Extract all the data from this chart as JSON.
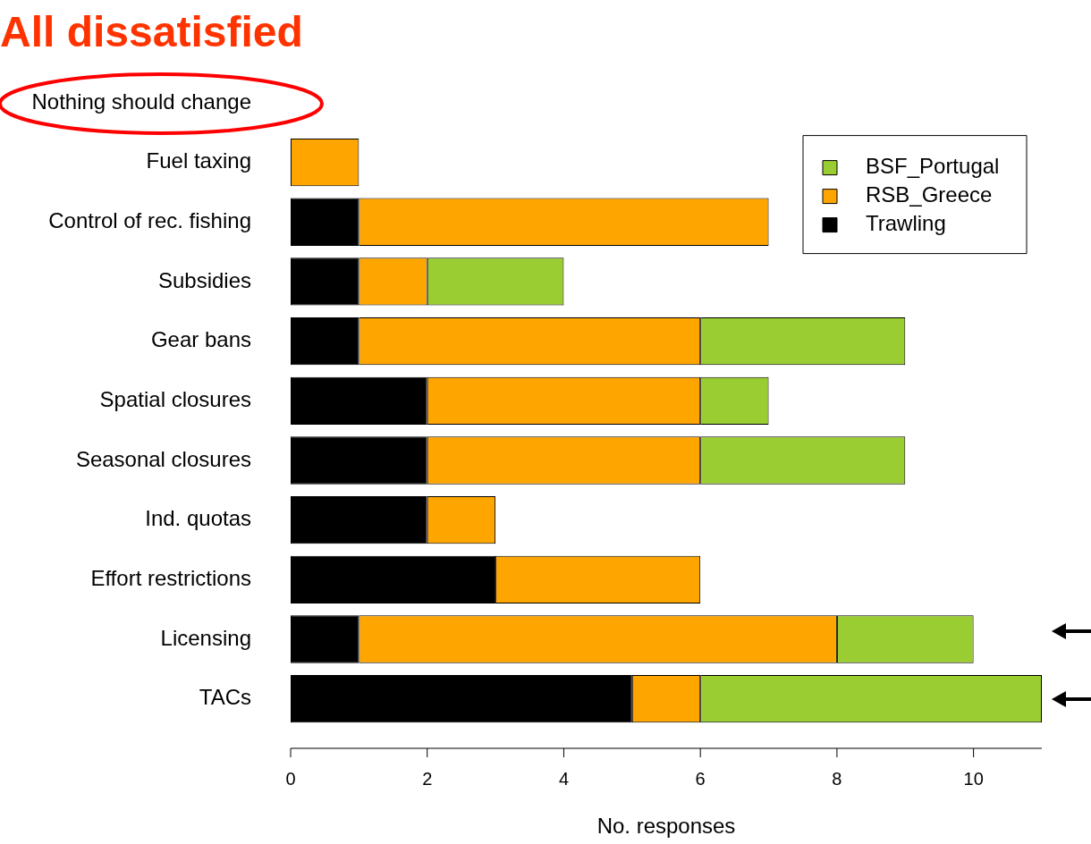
{
  "chart_data": {
    "type": "bar",
    "orientation": "horizontal",
    "stacked": true,
    "title": "All dissatisfied",
    "xlabel": "No. responses",
    "categories": [
      "Nothing should change",
      "Fuel taxing",
      "Control of rec. fishing",
      "Subsidies",
      "Gear bans",
      "Spatial closures",
      "Seasonal closures",
      "Ind. quotas",
      "Effort restrictions",
      "Licensing",
      "TACs"
    ],
    "series": [
      {
        "name": "Trawling",
        "color": "#000000",
        "values": [
          0,
          0,
          1,
          1,
          1,
          2,
          2,
          2,
          3,
          1,
          5
        ]
      },
      {
        "name": "RSB_Greece",
        "color": "#ffa500",
        "values": [
          0,
          1,
          6,
          1,
          5,
          4,
          4,
          1,
          3,
          7,
          1
        ]
      },
      {
        "name": "BSF_Portugal",
        "color": "#9acd32",
        "values": [
          0,
          0,
          0,
          2,
          3,
          1,
          3,
          0,
          0,
          2,
          5
        ]
      }
    ],
    "xlim": [
      0,
      11
    ],
    "xticks": [
      0,
      2,
      4,
      6,
      8,
      10
    ],
    "grid": false,
    "legend": "top right"
  }
}
